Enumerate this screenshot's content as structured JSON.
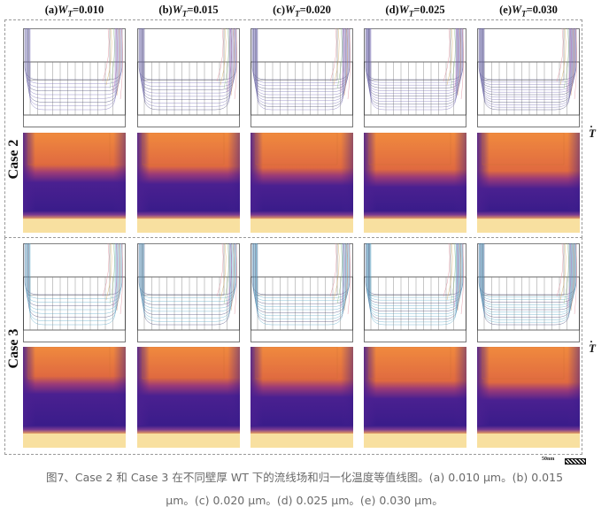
{
  "columns": [
    {
      "letter": "(a)",
      "w": "W",
      "sub": "T",
      "value": "=0.010"
    },
    {
      "letter": "(b)",
      "w": "W",
      "sub": "T",
      "value": "=0.015"
    },
    {
      "letter": "(c)",
      "w": "W",
      "sub": "T",
      "value": "=0.020"
    },
    {
      "letter": "(d)",
      "w": "W",
      "sub": "T",
      "value": "=0.025"
    },
    {
      "letter": "(e)",
      "w": "W",
      "sub": "T",
      "value": "=0.030"
    }
  ],
  "cases": [
    {
      "label": "Case 2",
      "symbol": "T",
      "dot": "·"
    },
    {
      "label": "Case 3",
      "symbol": "T",
      "dot": "·"
    }
  ],
  "scale_bar": {
    "label": "50nm"
  },
  "caption": {
    "line1": "图7、Case 2 和 Case 3 在不同壁厚 WT 下的流线场和归一化温度等值线图。(a) 0.010 μm。(b) 0.015",
    "line2": "μm。(c) 0.020 μm。(d) 0.025 μm。(e) 0.030 μm。"
  },
  "colors": {
    "heat_orange": "#f08a3e",
    "heat_purple": "#3a1c8a",
    "heat_yellow": "#f8e0a0",
    "streamline_case2": "#7a70b8",
    "streamline_case3": "#5aa8c8",
    "caption_gray": "#6a6a6a"
  }
}
